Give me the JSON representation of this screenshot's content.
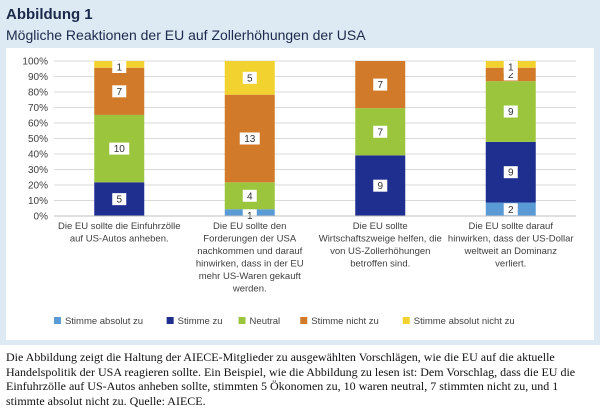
{
  "figure": {
    "label": "Abbildung 1",
    "title": "Mögliche Reaktionen der EU auf Zollerhöhungen der USA"
  },
  "caption": "Die Abbildung zeigt die Haltung der AIECE-Mitglieder zu ausgewählten Vorschlägen, wie die EU auf die aktuelle Handelspolitik der USA reagieren sollte. Ein Beispiel, wie die Abbildung zu lesen ist: Dem Vorschlag, dass die EU die Einfuhrzölle auf US-Autos anheben sollte, stimmten 5 Ökonomen zu, 10 waren neutral, 7 stimmten nicht zu, und 1 stimmte absolut nicht zu. Quelle: AIECE.",
  "chart_data": {
    "type": "bar",
    "stacked": "percent",
    "title": "Mögliche Reaktionen der EU auf Zollerhöhungen der USA",
    "categories": [
      [
        "Die EU sollte die Einfuhrzölle",
        "auf US-Autos anheben."
      ],
      [
        "Die EU sollte den",
        "Forderungen der USA",
        "nachkommen und darauf",
        "hinwirken, dass in der EU",
        "mehr US-Waren gekauft",
        "werden."
      ],
      [
        "Die EU sollte",
        "Wirtschaftszweige helfen, die",
        "von US-Zollerhöhungen",
        "betroffen sind."
      ],
      [
        "Die EU sollte darauf",
        "hinwirken, dass der US-Dollar",
        "weltweit an Dominanz",
        "verliert."
      ]
    ],
    "series": [
      {
        "name": "Stimme absolut zu",
        "color": "#5b9bd5",
        "values": [
          0,
          1,
          0,
          2
        ]
      },
      {
        "name": "Stimme zu",
        "color": "#1f2f8f",
        "values": [
          5,
          0,
          9,
          9
        ]
      },
      {
        "name": "Neutral",
        "color": "#9bc53d",
        "values": [
          10,
          4,
          7,
          9
        ]
      },
      {
        "name": "Stimme nicht zu",
        "color": "#d07a2a",
        "values": [
          7,
          13,
          7,
          2
        ]
      },
      {
        "name": "Stimme absolut nicht zu",
        "color": "#f2d22e",
        "values": [
          1,
          5,
          0,
          1
        ]
      }
    ],
    "y_ticks": [
      "0%",
      "10%",
      "20%",
      "30%",
      "40%",
      "50%",
      "60%",
      "70%",
      "80%",
      "90%",
      "100%"
    ],
    "ylim": [
      0,
      100
    ],
    "grid": true,
    "legend_position": "bottom"
  }
}
